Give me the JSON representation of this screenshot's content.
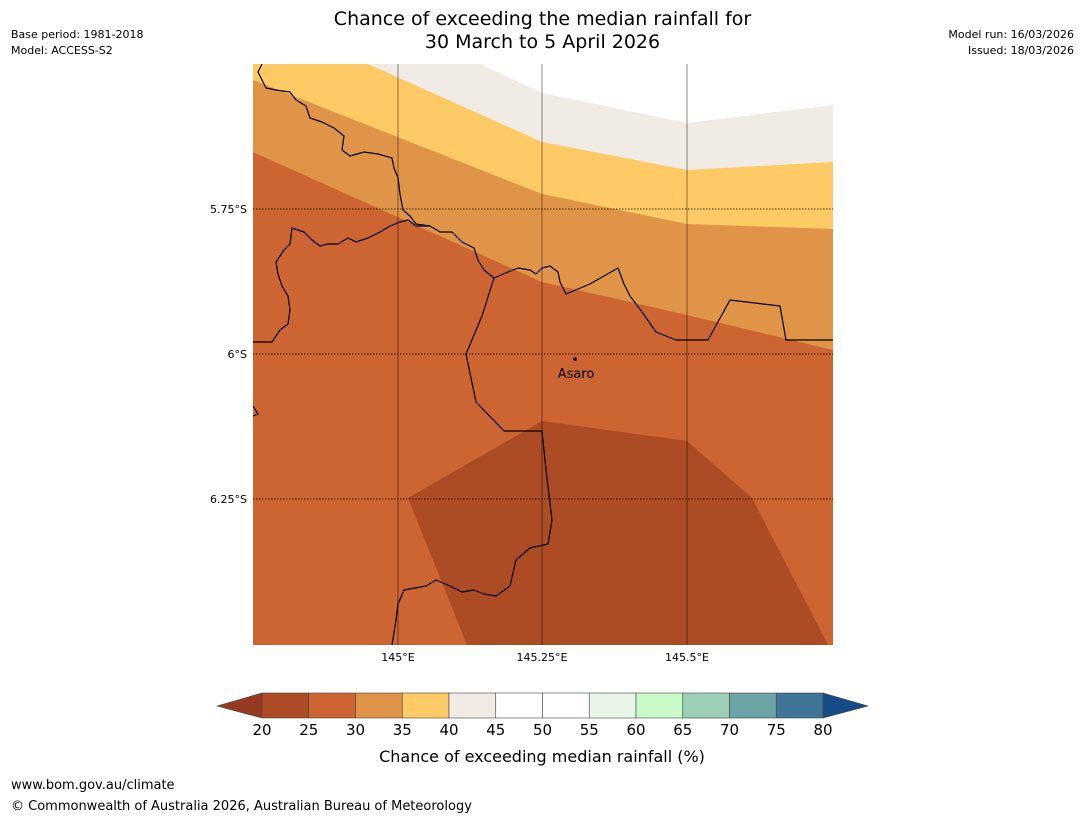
{
  "header": {
    "title_line1": "Chance of exceeding the median rainfall for",
    "title_line2": "30 March to 5 April 2026",
    "base_period": "Base period: 1981-2018",
    "model": "Model: ACCESS-S2",
    "model_run": "Model run: 16/03/2026",
    "issued": "Issued: 18/03/2026"
  },
  "map": {
    "lat_labels": [
      "5.75°S",
      "6°S",
      "6.25°S"
    ],
    "lon_labels": [
      "145°E",
      "145.25°E",
      "145.5°E"
    ],
    "place": {
      "name": "Asaro"
    },
    "colors": {
      "band_20_25": "#ad4b25",
      "band_25_30": "#cc6532",
      "band_30_35": "#e09448",
      "band_35_40": "#fdca66",
      "band_40_45": "#f0ebe5",
      "band_45_55": "#ffffff",
      "border": "#000000",
      "grid": "#000000"
    }
  },
  "colorbar": {
    "ticks": [
      "20",
      "25",
      "30",
      "35",
      "40",
      "45",
      "50",
      "55",
      "60",
      "65",
      "70",
      "75",
      "80"
    ],
    "colors": [
      "#ad4b25",
      "#cc6532",
      "#e09448",
      "#fdca66",
      "#f0ebe5",
      "#ffffff",
      "#ffffff",
      "#e8f5e8",
      "#c8fbc8",
      "#9ccfb8",
      "#6ca3a4",
      "#3f7596"
    ],
    "under_color": "#963a22",
    "over_color": "#154c87",
    "label": "Chance of exceeding median rainfall (%)"
  },
  "footer": {
    "url": "www.bom.gov.au/climate",
    "copyright": "© Commonwealth of Australia 2026, Australian Bureau of Meteorology"
  }
}
